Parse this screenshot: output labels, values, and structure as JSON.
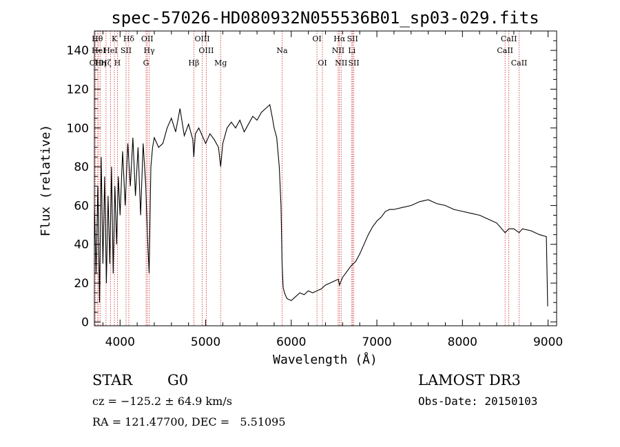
{
  "chart_data": {
    "type": "line",
    "title": "spec-57026-HD080932N055536B01_sp03-029.fits",
    "xlabel": "Wavelength (Å)",
    "ylabel": "Flux (relative)",
    "xlim": [
      3700,
      9100
    ],
    "ylim": [
      -2,
      150
    ],
    "xticks": [
      4000,
      5000,
      6000,
      7000,
      8000,
      9000
    ],
    "yticks": [
      0,
      20,
      40,
      60,
      80,
      100,
      120,
      140
    ],
    "xtick_labels": [
      "4000",
      "5000",
      "6000",
      "7000",
      "8000",
      "9000"
    ],
    "ytick_labels": [
      "0",
      "20",
      "40",
      "60",
      "80",
      "100",
      "120",
      "140"
    ],
    "line_color": "#000000",
    "marker_color": "#cc2222",
    "series": [
      {
        "x": [
          3700,
          3720,
          3740,
          3760,
          3780,
          3800,
          3820,
          3840,
          3860,
          3880,
          3900,
          3920,
          3940,
          3960,
          3980,
          4000,
          4030,
          4060,
          4090,
          4120,
          4150,
          4180,
          4210,
          4240,
          4270,
          4300,
          4320,
          4340,
          4360,
          4380,
          4400,
          4450,
          4500,
          4550,
          4600,
          4650,
          4700,
          4750,
          4800,
          4850,
          4861,
          4880,
          4920,
          4960,
          5000,
          5050,
          5100,
          5150,
          5175,
          5200,
          5250,
          5300,
          5350,
          5400,
          5450,
          5500,
          5550,
          5600,
          5650,
          5700,
          5750,
          5780,
          5800,
          5830,
          5860,
          5880,
          5893,
          5905,
          5920,
          5950,
          6000,
          6050,
          6100,
          6150,
          6200,
          6250,
          6300,
          6350,
          6400,
          6450,
          6500,
          6550,
          6563,
          6600,
          6650,
          6700,
          6750,
          6800,
          6850,
          6900,
          6950,
          7000,
          7050,
          7100,
          7150,
          7200,
          7300,
          7400,
          7500,
          7600,
          7700,
          7800,
          7900,
          8000,
          8100,
          8200,
          8300,
          8400,
          8498,
          8542,
          8600,
          8662,
          8700,
          8800,
          8900,
          8980,
          8995
        ],
        "y": [
          60,
          25,
          70,
          10,
          85,
          30,
          75,
          20,
          65,
          30,
          80,
          25,
          70,
          40,
          75,
          55,
          88,
          60,
          92,
          70,
          95,
          65,
          90,
          55,
          92,
          70,
          45,
          25,
          80,
          90,
          95,
          90,
          92,
          100,
          105,
          98,
          110,
          96,
          102,
          94,
          85,
          97,
          100,
          96,
          92,
          97,
          94,
          90,
          80,
          92,
          100,
          103,
          100,
          104,
          98,
          102,
          106,
          104,
          108,
          110,
          112,
          105,
          100,
          95,
          80,
          60,
          30,
          18,
          15,
          12,
          11,
          13,
          15,
          14,
          16,
          15,
          16,
          17,
          19,
          20,
          21,
          22,
          19,
          23,
          26,
          29,
          31,
          35,
          40,
          45,
          49,
          52,
          54,
          57,
          58,
          58,
          59,
          60,
          62,
          63,
          61,
          60,
          58,
          57,
          56,
          55,
          53,
          51,
          46,
          48,
          48,
          46,
          48,
          47,
          45,
          44,
          8
        ]
      }
    ],
    "lines": [
      {
        "x": 3712,
        "label": "OII",
        "row": 3
      },
      {
        "x": 3734,
        "label": "Hθ",
        "row": 1
      },
      {
        "x": 3750,
        "label": "HeI",
        "row": 2
      },
      {
        "x": 3771,
        "label": "Hη",
        "row": 3
      },
      {
        "x": 3836,
        "label": "Hζ",
        "row": 3
      },
      {
        "x": 3889,
        "label": "HeI",
        "row": 2
      },
      {
        "x": 3934,
        "label": "K",
        "row": 1
      },
      {
        "x": 3969,
        "label": "H",
        "row": 3
      },
      {
        "x": 4070,
        "label": "SII",
        "row": 2
      },
      {
        "x": 4102,
        "label": "Hδ",
        "row": 1
      },
      {
        "x": 4304,
        "label": "G",
        "row": 3
      },
      {
        "x": 4318,
        "label": "OII",
        "row": 1
      },
      {
        "x": 4340,
        "label": "Hγ",
        "row": 2
      },
      {
        "x": 4862,
        "label": "Hβ",
        "row": 3
      },
      {
        "x": 4960,
        "label": "OIII",
        "row": 1
      },
      {
        "x": 5007,
        "label": "OIII",
        "row": 2
      },
      {
        "x": 5175,
        "label": "Mg",
        "row": 3
      },
      {
        "x": 5893,
        "label": "Na",
        "row": 2
      },
      {
        "x": 6300,
        "label": "OI",
        "row": 1
      },
      {
        "x": 6364,
        "label": "OI",
        "row": 3
      },
      {
        "x": 6548,
        "label": "NII",
        "row": 2
      },
      {
        "x": 6563,
        "label": "Hα",
        "row": 1
      },
      {
        "x": 6583,
        "label": "NII",
        "row": 3
      },
      {
        "x": 6708,
        "label": "Li",
        "row": 2
      },
      {
        "x": 6716,
        "label": "SII",
        "row": 1
      },
      {
        "x": 6731,
        "label": "SII",
        "row": 3
      },
      {
        "x": 8498,
        "label": "CaII",
        "row": 2
      },
      {
        "x": 8542,
        "label": "CaII",
        "row": 1
      },
      {
        "x": 8662,
        "label": "CaII",
        "row": 3
      }
    ]
  },
  "info": {
    "class": "STAR",
    "subclass": "G0",
    "survey": "LAMOST DR3",
    "cz": "cz = −125.2 ± 64.9 km/s",
    "obsdate": "Obs-Date: 20150103",
    "radec": "RA = 121.47700, DEC =   5.51095"
  }
}
